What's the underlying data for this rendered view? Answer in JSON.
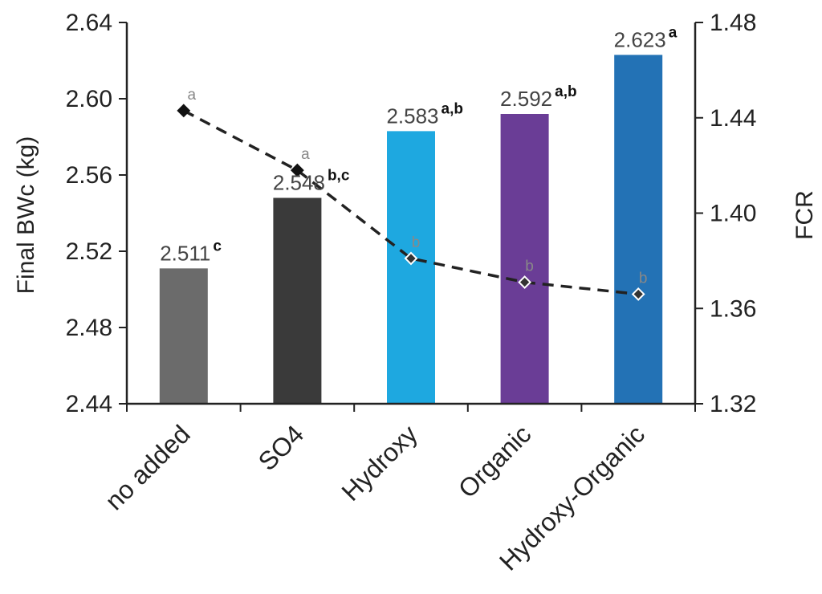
{
  "chart_data": {
    "type": "bar",
    "categories": [
      "no added",
      "SO4",
      "Hydroxy",
      "Organic",
      "Hydroxy-Organic"
    ],
    "ylabel": "Final BWc (kg)",
    "y2label": "FCR",
    "ylim": [
      2.44,
      2.64
    ],
    "yticks": [
      "2.44",
      "2.48",
      "2.52",
      "2.56",
      "2.60",
      "2.64"
    ],
    "y2lim": [
      1.32,
      1.48
    ],
    "y2ticks": [
      "1.32",
      "1.36",
      "1.40",
      "1.44",
      "1.48"
    ],
    "grid": false,
    "series": [
      {
        "kind": "bar",
        "axis": "left",
        "values": [
          2.511,
          2.548,
          2.583,
          2.592,
          2.623
        ],
        "labels": [
          "2.511",
          "2.548",
          "2.583",
          "2.592",
          "2.623"
        ],
        "significance": [
          "c",
          "b,c",
          "a,b",
          "a,b",
          "a"
        ],
        "colors": [
          "#6b6b6b",
          "#3a3a3a",
          "#1ea8e0",
          "#6a3d96",
          "#2372b5"
        ]
      },
      {
        "kind": "line",
        "axis": "right",
        "style": "dashed",
        "values": [
          1.443,
          1.418,
          1.381,
          1.371,
          1.366
        ],
        "significance": [
          "a",
          "a",
          "b",
          "b",
          "b"
        ],
        "marker_fills": [
          "#111111",
          "#111111",
          "#333333",
          "#333333",
          "#333333"
        ],
        "line_color": "#222222"
      }
    ]
  }
}
